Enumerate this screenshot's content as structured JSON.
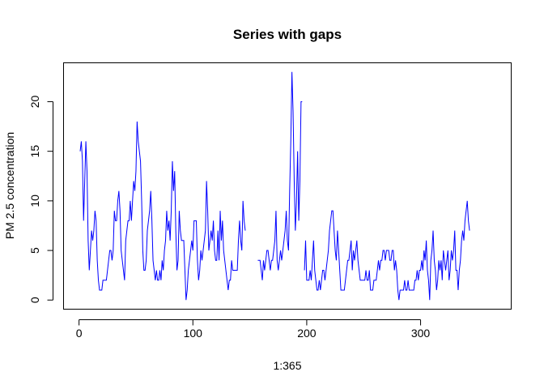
{
  "chart_data": {
    "type": "line",
    "title": "Series with gaps",
    "xlabel": "1:365",
    "ylabel": "PM 2.5 concentration",
    "xlim": [
      -13.6,
      379.6
    ],
    "ylim": [
      -0.92,
      23.92
    ],
    "xticks": [
      0,
      100,
      200,
      300
    ],
    "yticks": [
      0,
      5,
      10,
      15,
      20
    ],
    "grid": false,
    "legend": "none",
    "line_color": "#0000ff",
    "series": [
      {
        "values": [
          15,
          16,
          14,
          8,
          12,
          16,
          13,
          6,
          3,
          5,
          7,
          6,
          7,
          9,
          8,
          4,
          2,
          1,
          1,
          1,
          2,
          2,
          2,
          2,
          3,
          4,
          5,
          5,
          4,
          5,
          9,
          8,
          8,
          10,
          11,
          9,
          5,
          4,
          3,
          2,
          6,
          7,
          8,
          8,
          10,
          8,
          10,
          12,
          11,
          13,
          18,
          16,
          15,
          14,
          10,
          5,
          3,
          3,
          4,
          7,
          8,
          9,
          11,
          8,
          4,
          3,
          2,
          3,
          2,
          2,
          3,
          2,
          4,
          3,
          5,
          6,
          9,
          7,
          8,
          6,
          9,
          14,
          11,
          13,
          7,
          3,
          4,
          9,
          7,
          6,
          6,
          6,
          3,
          0,
          1,
          3,
          4,
          5,
          6,
          5,
          8,
          8,
          8,
          4,
          2,
          3,
          5,
          4,
          5,
          6,
          7,
          12,
          9,
          5,
          6,
          7,
          6,
          8,
          5,
          4,
          4,
          7,
          4,
          9,
          6,
          8,
          5,
          4,
          3,
          2,
          1,
          2,
          2,
          4,
          3,
          3,
          3,
          3,
          3,
          6,
          8,
          6,
          5,
          10,
          8,
          7,
          null,
          null,
          null,
          null,
          null,
          null,
          null,
          null,
          null,
          null,
          4,
          4,
          4,
          3,
          2,
          4,
          3,
          4,
          5,
          5,
          4,
          3,
          4,
          4,
          5,
          6,
          9,
          4,
          3,
          4,
          5,
          4,
          5,
          6,
          7,
          9,
          6,
          5,
          11,
          16,
          23,
          19,
          12,
          7,
          10,
          15,
          8,
          12,
          20,
          20,
          null,
          3,
          6,
          2,
          2,
          2,
          3,
          2,
          4,
          6,
          3,
          2,
          1,
          1,
          2,
          1,
          2,
          3,
          3,
          2,
          3,
          4,
          5,
          7,
          8,
          9,
          9,
          7,
          5,
          4,
          7,
          5,
          3,
          1,
          1,
          1,
          1,
          2,
          3,
          4,
          4,
          5,
          6,
          3,
          5,
          4,
          5,
          6,
          4,
          3,
          2,
          2,
          2,
          2,
          2,
          3,
          2,
          2,
          3,
          1,
          1,
          1,
          2,
          2,
          2,
          3,
          4,
          3,
          4,
          4,
          5,
          5,
          4,
          5,
          5,
          5,
          4,
          4,
          5,
          5,
          3,
          4,
          3,
          1,
          0,
          1,
          1,
          1,
          1,
          2,
          1,
          1,
          2,
          1,
          1,
          1,
          1,
          1,
          2,
          2,
          3,
          2,
          3,
          3,
          4,
          3,
          5,
          4,
          6,
          3,
          2,
          0,
          4,
          5,
          7,
          4,
          3,
          1,
          2,
          4,
          3,
          4,
          2,
          5,
          4,
          3,
          4,
          5,
          2,
          3,
          5,
          4,
          5,
          7,
          3,
          3,
          1,
          3,
          4,
          6,
          7,
          6,
          8,
          9,
          10,
          8,
          7
        ]
      }
    ]
  }
}
